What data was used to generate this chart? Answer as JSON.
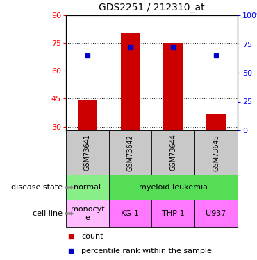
{
  "title": "GDS2251 / 212310_at",
  "samples": [
    "GSM73641",
    "GSM73642",
    "GSM73644",
    "GSM73645"
  ],
  "count_values": [
    44.5,
    80.5,
    75.0,
    37.0
  ],
  "percentile_values": [
    65.0,
    72.0,
    72.0,
    65.0
  ],
  "ylim_left": [
    28,
    90
  ],
  "ylim_right": [
    0,
    100
  ],
  "yticks_left": [
    30,
    45,
    60,
    75,
    90
  ],
  "yticks_right": [
    0,
    25,
    50,
    75,
    100
  ],
  "bar_color": "#cc0000",
  "dot_color": "#0000cc",
  "bar_bottom": 28,
  "disease_colors": {
    "normal": "#88ee88",
    "myeloid leukemia": "#55dd55"
  },
  "cell_line_monocyte_color": "#ffbbff",
  "cell_line_other_color": "#ff77ff",
  "sample_bg_color": "#c8c8c8",
  "label_disease_state": "disease state",
  "label_cell_line": "cell line",
  "legend_count": "count",
  "legend_percentile": "percentile rank within the sample",
  "cell_lines": [
    "monocyt\ne",
    "KG-1",
    "THP-1",
    "U937"
  ]
}
